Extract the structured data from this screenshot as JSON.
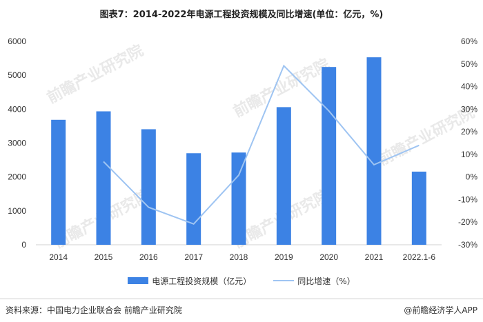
{
  "title": "图表7：2014-2022年电源工程投资规模及同比增速(单位：亿元，%)",
  "chart_data": {
    "type": "bar",
    "categories": [
      "2014",
      "2015",
      "2016",
      "2017",
      "2018",
      "2019",
      "2020",
      "2021",
      "2022.1-6"
    ],
    "series": [
      {
        "name": "电源工程投资规模（亿元）",
        "type": "bar",
        "axis": "left",
        "values": [
          3686,
          3936,
          3408,
          2700,
          2721,
          4060,
          5244,
          5530,
          2158
        ]
      },
      {
        "name": "同比增速（%）",
        "type": "line",
        "axis": "right",
        "values": [
          null,
          6.8,
          -13.4,
          -20.8,
          0.8,
          49.2,
          29.2,
          5.4,
          14.0
        ]
      }
    ],
    "y_left": {
      "min": 0,
      "max": 6000,
      "ticks": [
        "0",
        "1000",
        "2000",
        "3000",
        "4000",
        "5000",
        "6000"
      ]
    },
    "y_right": {
      "min": -30,
      "max": 60,
      "ticks": [
        "-30%",
        "-20%",
        "-10%",
        "0%",
        "10%",
        "20%",
        "30%",
        "40%",
        "50%",
        "60%"
      ]
    },
    "legend_position": "bottom",
    "grid": false,
    "colors": {
      "bar": "#3c82e4",
      "line": "#9ec4f2"
    }
  },
  "legend": {
    "bar_label": "电源工程投资规模（亿元）",
    "line_label": "同比增速（%）"
  },
  "source": "资料来源：中国电力企业联合会 前瞻产业研究院",
  "copyright": "@前瞻经济学人APP",
  "watermark": "前瞻产业研究院"
}
